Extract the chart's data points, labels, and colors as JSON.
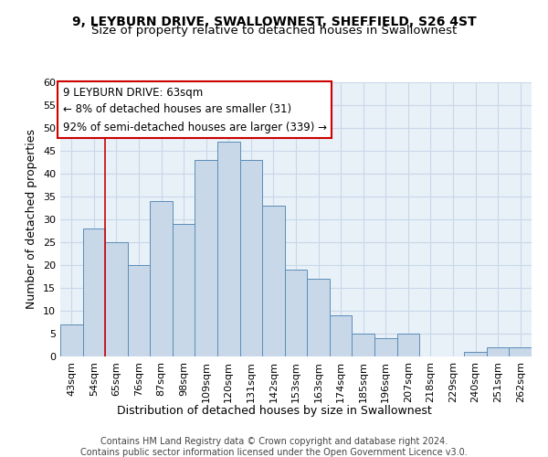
{
  "title_line1": "9, LEYBURN DRIVE, SWALLOWNEST, SHEFFIELD, S26 4ST",
  "title_line2": "Size of property relative to detached houses in Swallownest",
  "xlabel": "Distribution of detached houses by size in Swallownest",
  "ylabel": "Number of detached properties",
  "footer_line1": "Contains HM Land Registry data © Crown copyright and database right 2024.",
  "footer_line2": "Contains public sector information licensed under the Open Government Licence v3.0.",
  "bar_labels": [
    "43sqm",
    "54sqm",
    "65sqm",
    "76sqm",
    "87sqm",
    "98sqm",
    "109sqm",
    "120sqm",
    "131sqm",
    "142sqm",
    "153sqm",
    "163sqm",
    "174sqm",
    "185sqm",
    "196sqm",
    "207sqm",
    "218sqm",
    "229sqm",
    "240sqm",
    "251sqm",
    "262sqm"
  ],
  "bar_values": [
    7,
    28,
    25,
    20,
    34,
    29,
    43,
    47,
    43,
    33,
    19,
    17,
    9,
    5,
    4,
    5,
    0,
    0,
    1,
    2,
    2
  ],
  "bar_color": "#c8d8e8",
  "bar_edge_color": "#5b8db8",
  "annotation_text": "9 LEYBURN DRIVE: 63sqm\n← 8% of detached houses are smaller (31)\n92% of semi-detached houses are larger (339) →",
  "annotation_box_color": "#ffffff",
  "annotation_box_edge_color": "#cc0000",
  "vline_x": 1.5,
  "vline_color": "#cc0000",
  "ylim": [
    0,
    60
  ],
  "yticks": [
    0,
    5,
    10,
    15,
    20,
    25,
    30,
    35,
    40,
    45,
    50,
    55,
    60
  ],
  "grid_color": "#c8d8e8",
  "background_color": "#e8f0f8",
  "title_fontsize": 10,
  "subtitle_fontsize": 9.5,
  "label_fontsize": 9,
  "tick_fontsize": 8,
  "footer_fontsize": 7
}
